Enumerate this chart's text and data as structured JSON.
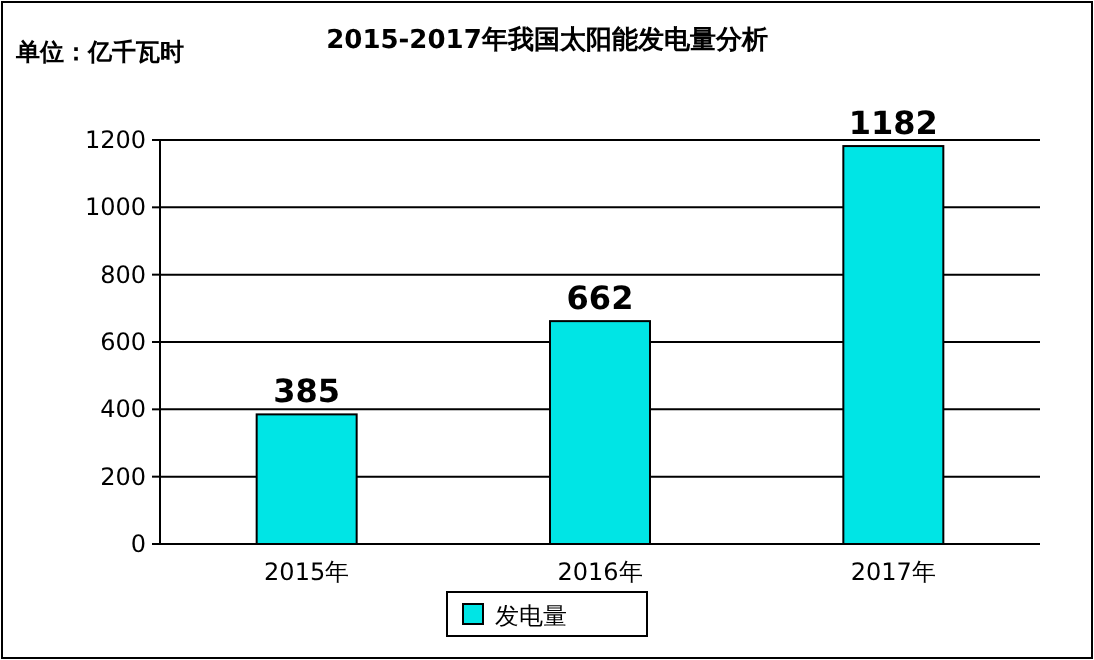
{
  "chart_data": {
    "type": "bar",
    "title": "2015-2017年我国太阳能发电量分析",
    "ylabel": "单位：亿千瓦时",
    "categories": [
      "2015年",
      "2016年",
      "2017年"
    ],
    "series": [
      {
        "name": "发电量",
        "color": "#00e5e5",
        "values": [
          385,
          662,
          1182
        ]
      }
    ],
    "ylim": [
      0,
      1200
    ],
    "yticks": [
      0,
      200,
      400,
      600,
      800,
      1000,
      1200
    ],
    "grid": "y",
    "legend": "bottom",
    "data_labels": true
  }
}
